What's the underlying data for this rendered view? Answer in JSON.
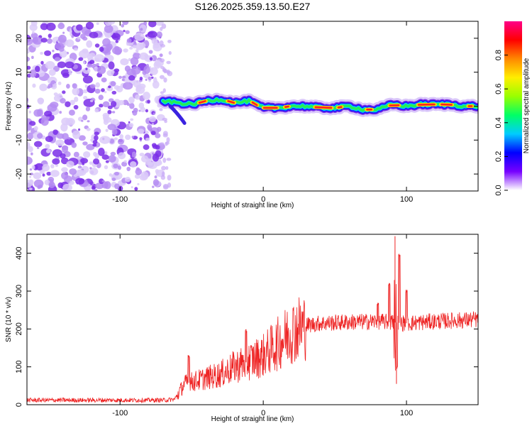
{
  "title": "S126.2025.359.13.50.E27",
  "chart_data": [
    {
      "type": "heatmap",
      "name": "spectrogram",
      "xlabel": "Height of straight line (km)",
      "ylabel": "Frequency (Hz)",
      "xlim": [
        -165,
        150
      ],
      "ylim": [
        -25,
        25
      ],
      "xticks": [
        -100,
        0,
        100
      ],
      "xtick_labels": [
        "-100",
        "0",
        "100"
      ],
      "yticks": [
        -20,
        -10,
        0,
        10,
        20
      ],
      "ytick_labels": [
        "-20",
        "-10",
        "0",
        "10",
        "20"
      ],
      "colorbar": {
        "label": "Normalized spectral amplitude",
        "range": [
          0,
          1
        ],
        "ticks": [
          0.0,
          0.2,
          0.4,
          0.6,
          0.8
        ],
        "tick_labels": [
          "0.0",
          "0.2",
          "0.4",
          "0.6",
          "0.8"
        ],
        "colors": [
          "#ffffff",
          "#7700ff",
          "#0000ff",
          "#00ccff",
          "#00ff66",
          "#99ff00",
          "#ffee00",
          "#ff8800",
          "#ff0000",
          "#ff0088"
        ]
      },
      "noise_region_x": [
        -165,
        -70
      ],
      "signal_track": {
        "x": [
          -70,
          -60,
          -50,
          -40,
          -30,
          -20,
          -10,
          0,
          10,
          20,
          30,
          40,
          50,
          60,
          70,
          80,
          90,
          100,
          110,
          120,
          130,
          140,
          150
        ],
        "freq": [
          1.5,
          1.0,
          0.5,
          1.5,
          2.0,
          1.0,
          1.5,
          -0.5,
          -0.5,
          0.0,
          0.0,
          -0.5,
          -0.5,
          0.0,
          -1.0,
          -1.0,
          0.5,
          0.0,
          0.5,
          0.5,
          0.5,
          0.0,
          0.0
        ]
      }
    },
    {
      "type": "line",
      "name": "snr",
      "xlabel": "Height of straight line (km)",
      "ylabel": "SNR (10 * v/v)",
      "xlim": [
        -165,
        150
      ],
      "ylim": [
        0,
        450
      ],
      "xticks": [
        -100,
        0,
        100
      ],
      "xtick_labels": [
        "-100",
        "0",
        "100"
      ],
      "yticks": [
        0,
        100,
        200,
        300,
        400
      ],
      "ytick_labels": [
        "0",
        "100",
        "200",
        "300",
        "400"
      ],
      "color": "#ee2222",
      "trend": {
        "x": [
          -165,
          -100,
          -70,
          -62,
          -55,
          -45,
          -30,
          -20,
          -10,
          0,
          10,
          20,
          30,
          40,
          60,
          80,
          100,
          120,
          150
        ],
        "y": [
          12,
          12,
          12,
          14,
          55,
          65,
          80,
          100,
          115,
          130,
          160,
          195,
          210,
          215,
          218,
          220,
          215,
          220,
          225
        ]
      },
      "spikes": [
        {
          "x": -52,
          "y": 130
        },
        {
          "x": -12,
          "y": 195
        },
        {
          "x": 80,
          "y": 265
        },
        {
          "x": 88,
          "y": 320
        },
        {
          "x": 92,
          "y": 445
        },
        {
          "x": 93,
          "y": 55
        },
        {
          "x": 95,
          "y": 395
        },
        {
          "x": 100,
          "y": 300
        }
      ]
    }
  ]
}
